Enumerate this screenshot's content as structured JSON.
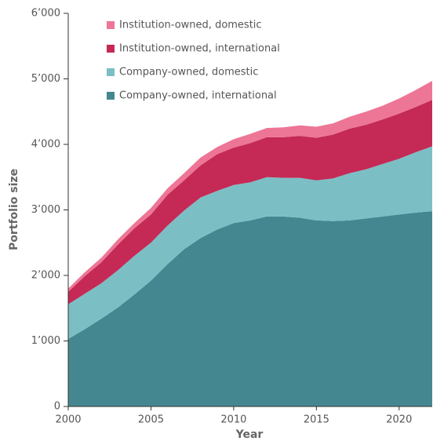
{
  "chart_data": {
    "type": "stacked-area",
    "x_label": "Year",
    "y_label": "Portfolio size",
    "x": [
      2000,
      2001,
      2002,
      2003,
      2004,
      2005,
      2006,
      2007,
      2008,
      2009,
      2010,
      2011,
      2012,
      2013,
      2014,
      2015,
      2016,
      2017,
      2018,
      2019,
      2020,
      2021,
      2022
    ],
    "series": [
      {
        "name": "Company-owned, international",
        "color": "#458790",
        "values": [
          1030,
          1180,
          1340,
          1510,
          1710,
          1920,
          2170,
          2400,
          2570,
          2700,
          2800,
          2840,
          2900,
          2900,
          2880,
          2840,
          2830,
          2840,
          2870,
          2900,
          2930,
          2960,
          2980
        ]
      },
      {
        "name": "Company-owned, domestic",
        "color": "#7bbfc5",
        "values": [
          530,
          540,
          540,
          570,
          590,
          580,
          590,
          590,
          620,
          590,
          580,
          580,
          600,
          590,
          610,
          610,
          650,
          720,
          750,
          800,
          850,
          920,
          990
        ]
      },
      {
        "name": "Institution-owned, international",
        "color": "#c42a55",
        "values": [
          190,
          270,
          320,
          390,
          420,
          430,
          470,
          460,
          490,
          560,
          570,
          600,
          610,
          620,
          640,
          650,
          670,
          680,
          680,
          680,
          690,
          690,
          710
        ]
      },
      {
        "name": "Institution-owned, domestic",
        "color": "#ed7596",
        "values": [
          50,
          60,
          70,
          80,
          80,
          100,
          100,
          110,
          120,
          110,
          130,
          140,
          140,
          150,
          160,
          170,
          170,
          180,
          200,
          210,
          230,
          260,
          290
        ]
      }
    ],
    "xlim": [
      2000,
      2022
    ],
    "xticks": [
      2000,
      2005,
      2010,
      2015,
      2020
    ],
    "ylim": [
      0,
      6000
    ],
    "yticks": [
      0,
      {
        "value": 1000,
        "label": "1’000"
      },
      {
        "value": 2000,
        "label": "2’000"
      },
      {
        "value": 3000,
        "label": "3’000"
      },
      {
        "value": 4000,
        "label": "4’000"
      },
      {
        "value": 5000,
        "label": "5’000"
      },
      {
        "value": 6000,
        "label": "6’000"
      }
    ],
    "legend": "upper left"
  }
}
